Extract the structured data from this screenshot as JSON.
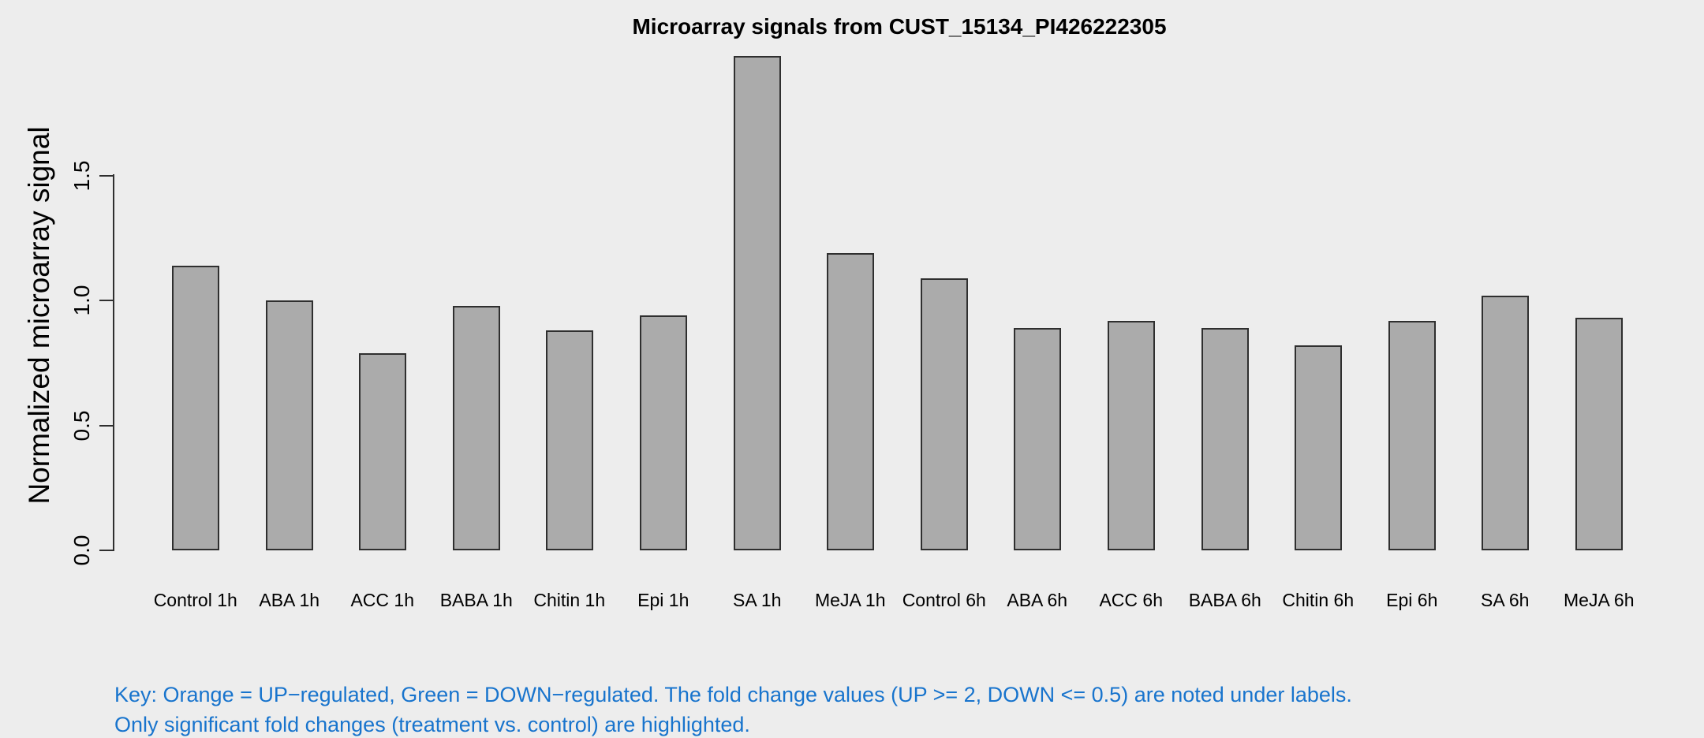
{
  "chart_data": {
    "type": "bar",
    "title": "Microarray signals from CUST_15134_PI426222305",
    "ylabel": "Normalized microarray signal",
    "xlabel": "",
    "categories": [
      "Control 1h",
      "ABA 1h",
      "ACC 1h",
      "BABA 1h",
      "Chitin 1h",
      "Epi 1h",
      "SA 1h",
      "MeJA 1h",
      "Control 6h",
      "ABA 6h",
      "ACC 6h",
      "BABA 6h",
      "Chitin 6h",
      "Epi 6h",
      "SA 6h",
      "MeJA 6h"
    ],
    "values": [
      1.14,
      1.0,
      0.79,
      0.98,
      0.88,
      0.94,
      1.98,
      1.19,
      1.09,
      0.89,
      0.92,
      0.89,
      0.82,
      0.92,
      1.02,
      0.93
    ],
    "y_ticks": [
      "0.0",
      "0.5",
      "1.0",
      "1.5"
    ],
    "ylim": [
      0,
      2.0
    ],
    "grid": false,
    "legend": "none",
    "colors": {
      "background": "#EDEDED",
      "bar_fill": "#ABABAB",
      "bar_border": "#2F2F2F",
      "axis": "#2F2F2F",
      "text": "#000000",
      "note_blue": "#1874CD"
    }
  },
  "footnote": {
    "line1": "Key: Orange = UP−regulated, Green = DOWN−regulated. The fold change values (UP >= 2, DOWN <= 0.5) are noted under labels.",
    "line2": "Only significant fold changes (treatment vs. control) are highlighted."
  }
}
